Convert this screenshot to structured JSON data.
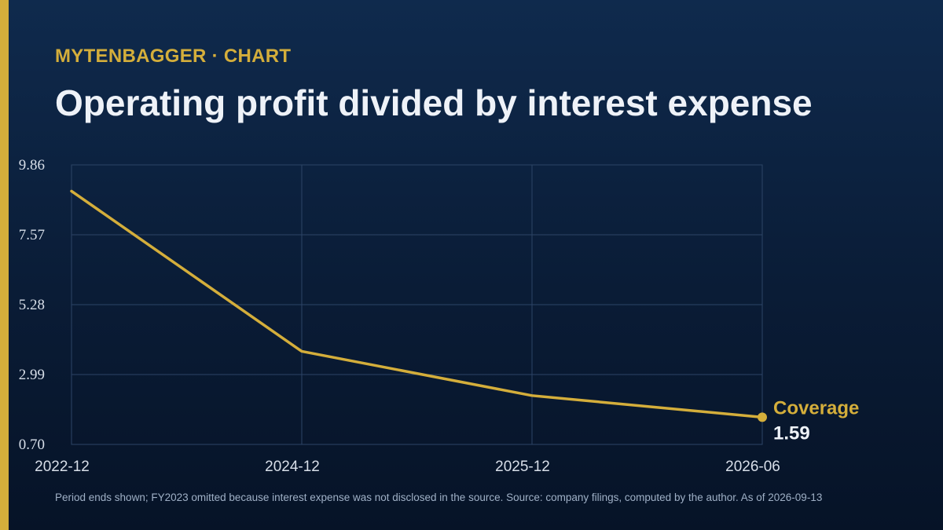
{
  "header": {
    "brand": "MYTENBAGGER",
    "separator": "·",
    "section": "CHART",
    "title": "Operating profit divided by interest expense"
  },
  "footnote": "Period ends shown; FY2023 omitted because interest expense was not disclosed in the source. Source: company filings, computed by the author. As of 2026-09-13",
  "colors": {
    "background": "#0d2240",
    "accent": "#d4ae3b",
    "line": "#d4ae3b",
    "grid": "#2c4466",
    "text": "#eef2f8",
    "muted": "#9fb0c6"
  },
  "chart_data": {
    "type": "line",
    "categories": [
      "2022-12",
      "2024-12",
      "2025-12",
      "2026-06"
    ],
    "series": [
      {
        "name": "Coverage",
        "values": [
          9.0,
          3.75,
          2.3,
          1.59
        ]
      }
    ],
    "end_label": {
      "name": "Coverage",
      "value": "1.59"
    },
    "y_ticks": [
      "9.86",
      "7.57",
      "5.28",
      "2.99",
      "0.70"
    ],
    "ylim": [
      0.7,
      9.86
    ],
    "grid": true,
    "title": "Operating profit divided by interest expense"
  }
}
